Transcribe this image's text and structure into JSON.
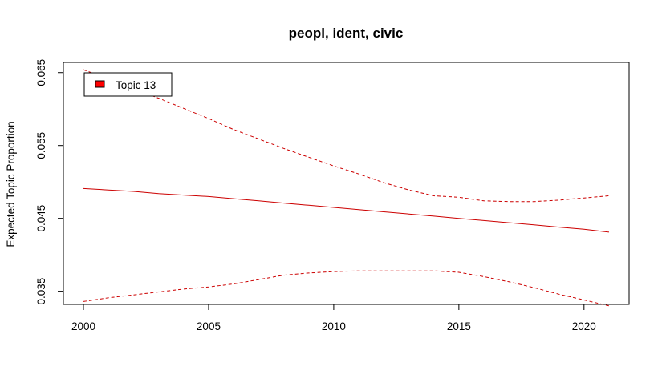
{
  "chart_data": {
    "type": "line",
    "title": "peopl, ident, civic",
    "xlabel": "",
    "ylabel": "Expected Topic Proportion",
    "xlim": [
      2000,
      2021
    ],
    "ylim": [
      0.0332,
      0.0664
    ],
    "x_ticks": [
      2000,
      2005,
      2010,
      2015,
      2020
    ],
    "y_ticks": [
      0.035,
      0.045,
      0.055,
      0.065
    ],
    "y_tick_labels": [
      "0.035",
      "0.045",
      "0.055",
      "0.065"
    ],
    "x_tick_labels": [
      "2000",
      "2005",
      "2010",
      "2015",
      "2020"
    ],
    "legend": {
      "position": "top-left",
      "entries": [
        "Topic 13"
      ]
    },
    "line_color": "#cc0000",
    "legend_fill": "#ff0000",
    "grid": false,
    "x": [
      2000,
      2001,
      2002,
      2003,
      2004,
      2005,
      2006,
      2007,
      2008,
      2009,
      2010,
      2011,
      2012,
      2013,
      2014,
      2015,
      2016,
      2017,
      2018,
      2019,
      2020,
      2021
    ],
    "series": [
      {
        "name": "Topic 13",
        "style": "solid",
        "values": [
          0.0491,
          0.0489,
          0.0487,
          0.0484,
          0.0482,
          0.048,
          0.0477,
          0.0474,
          0.0471,
          0.0468,
          0.0465,
          0.0462,
          0.0459,
          0.0456,
          0.0453,
          0.045,
          0.0447,
          0.0444,
          0.0441,
          0.0438,
          0.0435,
          0.0431
        ]
      },
      {
        "style": "dashed",
        "values": [
          0.0654,
          0.0641,
          0.0628,
          0.0615,
          0.0601,
          0.0587,
          0.0572,
          0.0559,
          0.0546,
          0.0534,
          0.0522,
          0.0511,
          0.0499,
          0.0489,
          0.0481,
          0.0479,
          0.0474,
          0.0473,
          0.0473,
          0.0475,
          0.0478,
          0.0481
        ]
      },
      {
        "style": "dashed",
        "values": [
          0.0336,
          0.0341,
          0.0345,
          0.0349,
          0.0353,
          0.0356,
          0.036,
          0.0366,
          0.0372,
          0.0375,
          0.0377,
          0.0378,
          0.0378,
          0.0378,
          0.0378,
          0.0376,
          0.037,
          0.0363,
          0.0355,
          0.0346,
          0.0338,
          0.033
        ]
      }
    ]
  }
}
